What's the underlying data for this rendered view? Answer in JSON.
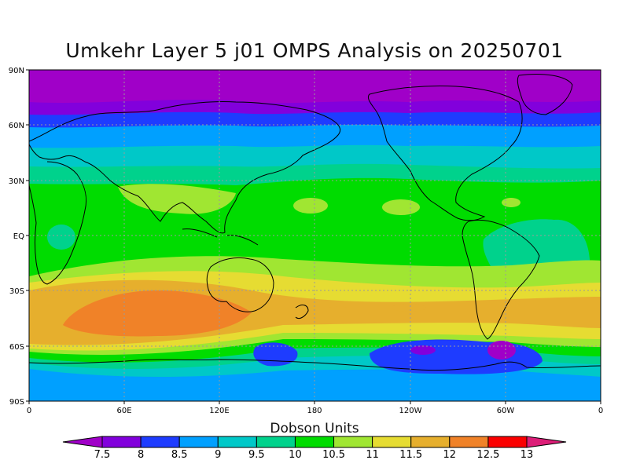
{
  "title": "Umkehr Layer 5 j01 OMPS Analysis on 20250701",
  "colorbar": {
    "title": "Dobson Units",
    "labels": [
      "7.5",
      "8",
      "8.5",
      "9",
      "9.5",
      "10",
      "10.5",
      "11",
      "11.5",
      "12",
      "12.5",
      "13"
    ],
    "colors": [
      "#a000c8",
      "#8200dc",
      "#1e3cff",
      "#00a0ff",
      "#00c8c8",
      "#00d28c",
      "#00dc00",
      "#a0e632",
      "#e6dc32",
      "#e6af2d",
      "#f08228",
      "#fa0000",
      "#dc1e78"
    ]
  },
  "axes": {
    "lat_labels": [
      "90N",
      "60N",
      "30N",
      "EQ",
      "30S",
      "60S",
      "90S"
    ],
    "lon_labels": [
      "0",
      "60E",
      "120E",
      "180",
      "120W",
      "60W",
      "0"
    ]
  },
  "chart_data": {
    "type": "heatmap",
    "title": "Umkehr Layer 5 j01 OMPS Analysis on 20250701",
    "units": "Dobson Units",
    "xlim": [
      0,
      360
    ],
    "ylim": [
      -90,
      90
    ],
    "latitude_bands_DU": [
      {
        "lat": 85,
        "value": 7.5
      },
      {
        "lat": 70,
        "value": 8
      },
      {
        "lat": 60,
        "value": 8.5
      },
      {
        "lat": 50,
        "value": 9
      },
      {
        "lat": 42,
        "value": 9.5
      },
      {
        "lat": 33,
        "value": 10
      },
      {
        "lat": 0,
        "value": 10.5
      },
      {
        "lat": -25,
        "value": 11
      },
      {
        "lat": -32,
        "value": 11.5
      },
      {
        "lat": -42,
        "value": 12
      },
      {
        "lat": -55,
        "value": 10.5
      },
      {
        "lat": -65,
        "value": 8.5
      },
      {
        "lat": -80,
        "value": 9
      }
    ],
    "features": [
      {
        "name": "southern Indian Ocean maximum",
        "value": 12.5,
        "lon": [
          15,
          120
        ],
        "lat": [
          -48,
          -32
        ]
      },
      {
        "name": "southern Pacific low",
        "value": 8,
        "lon": [
          215,
          290
        ],
        "lat": [
          -72,
          -55
        ]
      },
      {
        "name": "Drake Passage low",
        "value": 7.5,
        "lon": [
          292,
          310
        ],
        "lat": [
          -65,
          -56
        ]
      },
      {
        "name": "Tasman low",
        "value": 8,
        "lon": [
          145,
          160
        ],
        "lat": [
          -70,
          -57
        ]
      },
      {
        "name": "South American minimum",
        "value": 10,
        "lon": [
          290,
          320
        ],
        "lat": [
          -30,
          0
        ]
      },
      {
        "name": "subtropical northern highs",
        "value": 11,
        "lon": [
          50,
          320
        ],
        "lat": [
          15,
          28
        ]
      }
    ]
  }
}
